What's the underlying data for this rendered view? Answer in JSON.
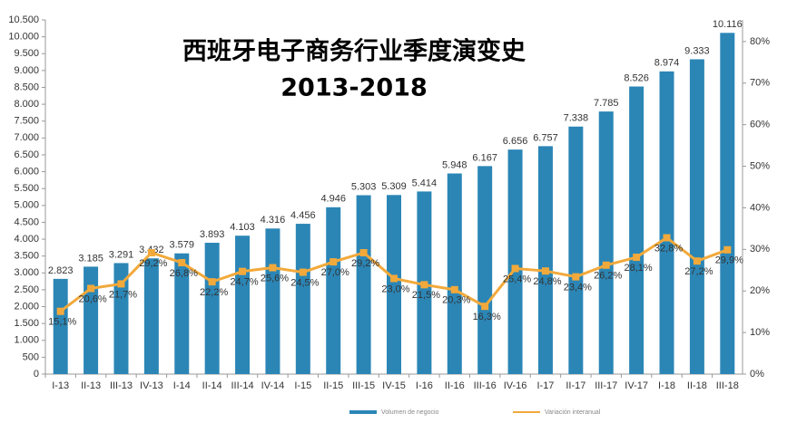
{
  "chart_data": {
    "type": "bar",
    "title": "西班牙电子商务行业季度演变史",
    "subtitle": "2013-2018",
    "categories": [
      "I-13",
      "II-13",
      "III-13",
      "IV-13",
      "I-14",
      "II-14",
      "III-14",
      "IV-14",
      "I-15",
      "II-15",
      "III-15",
      "IV-15",
      "I-16",
      "II-16",
      "III-16",
      "IV-16",
      "I-17",
      "II-17",
      "III-17",
      "IV-17",
      "I-18",
      "II-18",
      "III-18"
    ],
    "series": [
      {
        "name": "Volumen de negocio",
        "type": "bar",
        "color": "#2b86b6",
        "values": [
          2823,
          3185,
          3291,
          3432,
          3579,
          3893,
          4103,
          4316,
          4456,
          4946,
          5303,
          5309,
          5414,
          5948,
          6167,
          6656,
          6757,
          7338,
          7785,
          8526,
          8974,
          9333,
          10116
        ],
        "value_labels": [
          "2.823",
          "3.185",
          "3.291",
          "3.432",
          "3.579",
          "3.893",
          "4.103",
          "4.316",
          "4.456",
          "4.946",
          "5.303",
          "5.309",
          "5.414",
          "5.948",
          "6.167",
          "6.656",
          "6.757",
          "7.338",
          "7.785",
          "8.526",
          "8.974",
          "9.333",
          "10.116"
        ]
      },
      {
        "name": "Variación interanual",
        "type": "line",
        "axis": "y2",
        "color": "#f2a93b",
        "values": [
          15.1,
          20.6,
          21.7,
          29.2,
          26.8,
          22.2,
          24.7,
          25.6,
          24.5,
          27.0,
          29.2,
          23.0,
          21.5,
          20.3,
          16.3,
          25.4,
          24.8,
          23.4,
          26.2,
          28.1,
          32.8,
          27.2,
          29.9
        ],
        "value_labels": [
          "15,1%",
          "20,6%",
          "21,7%",
          "29,2%",
          "26,8%",
          "22,2%",
          "24,7%",
          "25,6%",
          "24,5%",
          "27,0%",
          "29,2%",
          "23,0%",
          "21,5%",
          "20,3%",
          "16,3%",
          "25,4%",
          "24,8%",
          "23,4%",
          "26,2%",
          "28,1%",
          "32,8%",
          "27,2%",
          "29,9%"
        ]
      }
    ],
    "ylim": [
      0,
      10500
    ],
    "yticks": [
      0,
      500,
      {
        "value": 1000,
        "label": "1.000"
      },
      {
        "value": 1500,
        "label": "1.500"
      },
      {
        "value": 2000,
        "label": "2.000"
      },
      {
        "value": 2500,
        "label": "2.500"
      },
      {
        "value": 3000,
        "label": "3.000"
      },
      {
        "value": 3500,
        "label": "3.500"
      },
      {
        "value": 4000,
        "label": "4.000"
      },
      {
        "value": 4500,
        "label": "4.500"
      },
      {
        "value": 5000,
        "label": "5.000"
      },
      {
        "value": 5500,
        "label": "5.500"
      },
      {
        "value": 6000,
        "label": "6.000"
      },
      {
        "value": 6500,
        "label": "6.500"
      },
      {
        "value": 7000,
        "label": "7.000"
      },
      {
        "value": 7500,
        "label": "7.500"
      },
      {
        "value": 8000,
        "label": "8.000"
      },
      {
        "value": 8500,
        "label": "8.500"
      },
      {
        "value": 9000,
        "label": "9.000"
      },
      {
        "value": 9500,
        "label": "9.500"
      },
      {
        "value": 10000,
        "label": "10.000"
      },
      {
        "value": 10500,
        "label": "10.500"
      }
    ],
    "y2lim": [
      0,
      85.2
    ],
    "y2ticks": [
      {
        "value": 0,
        "label": "0%"
      },
      {
        "value": 10,
        "label": "10%"
      },
      {
        "value": 20,
        "label": "20%"
      },
      {
        "value": 30,
        "label": "30%"
      },
      {
        "value": 40,
        "label": "40%"
      },
      {
        "value": 50,
        "label": "50%"
      },
      {
        "value": 60,
        "label": "60%"
      },
      {
        "value": 70,
        "label": "70%"
      },
      {
        "value": 80,
        "label": "80%"
      }
    ]
  }
}
